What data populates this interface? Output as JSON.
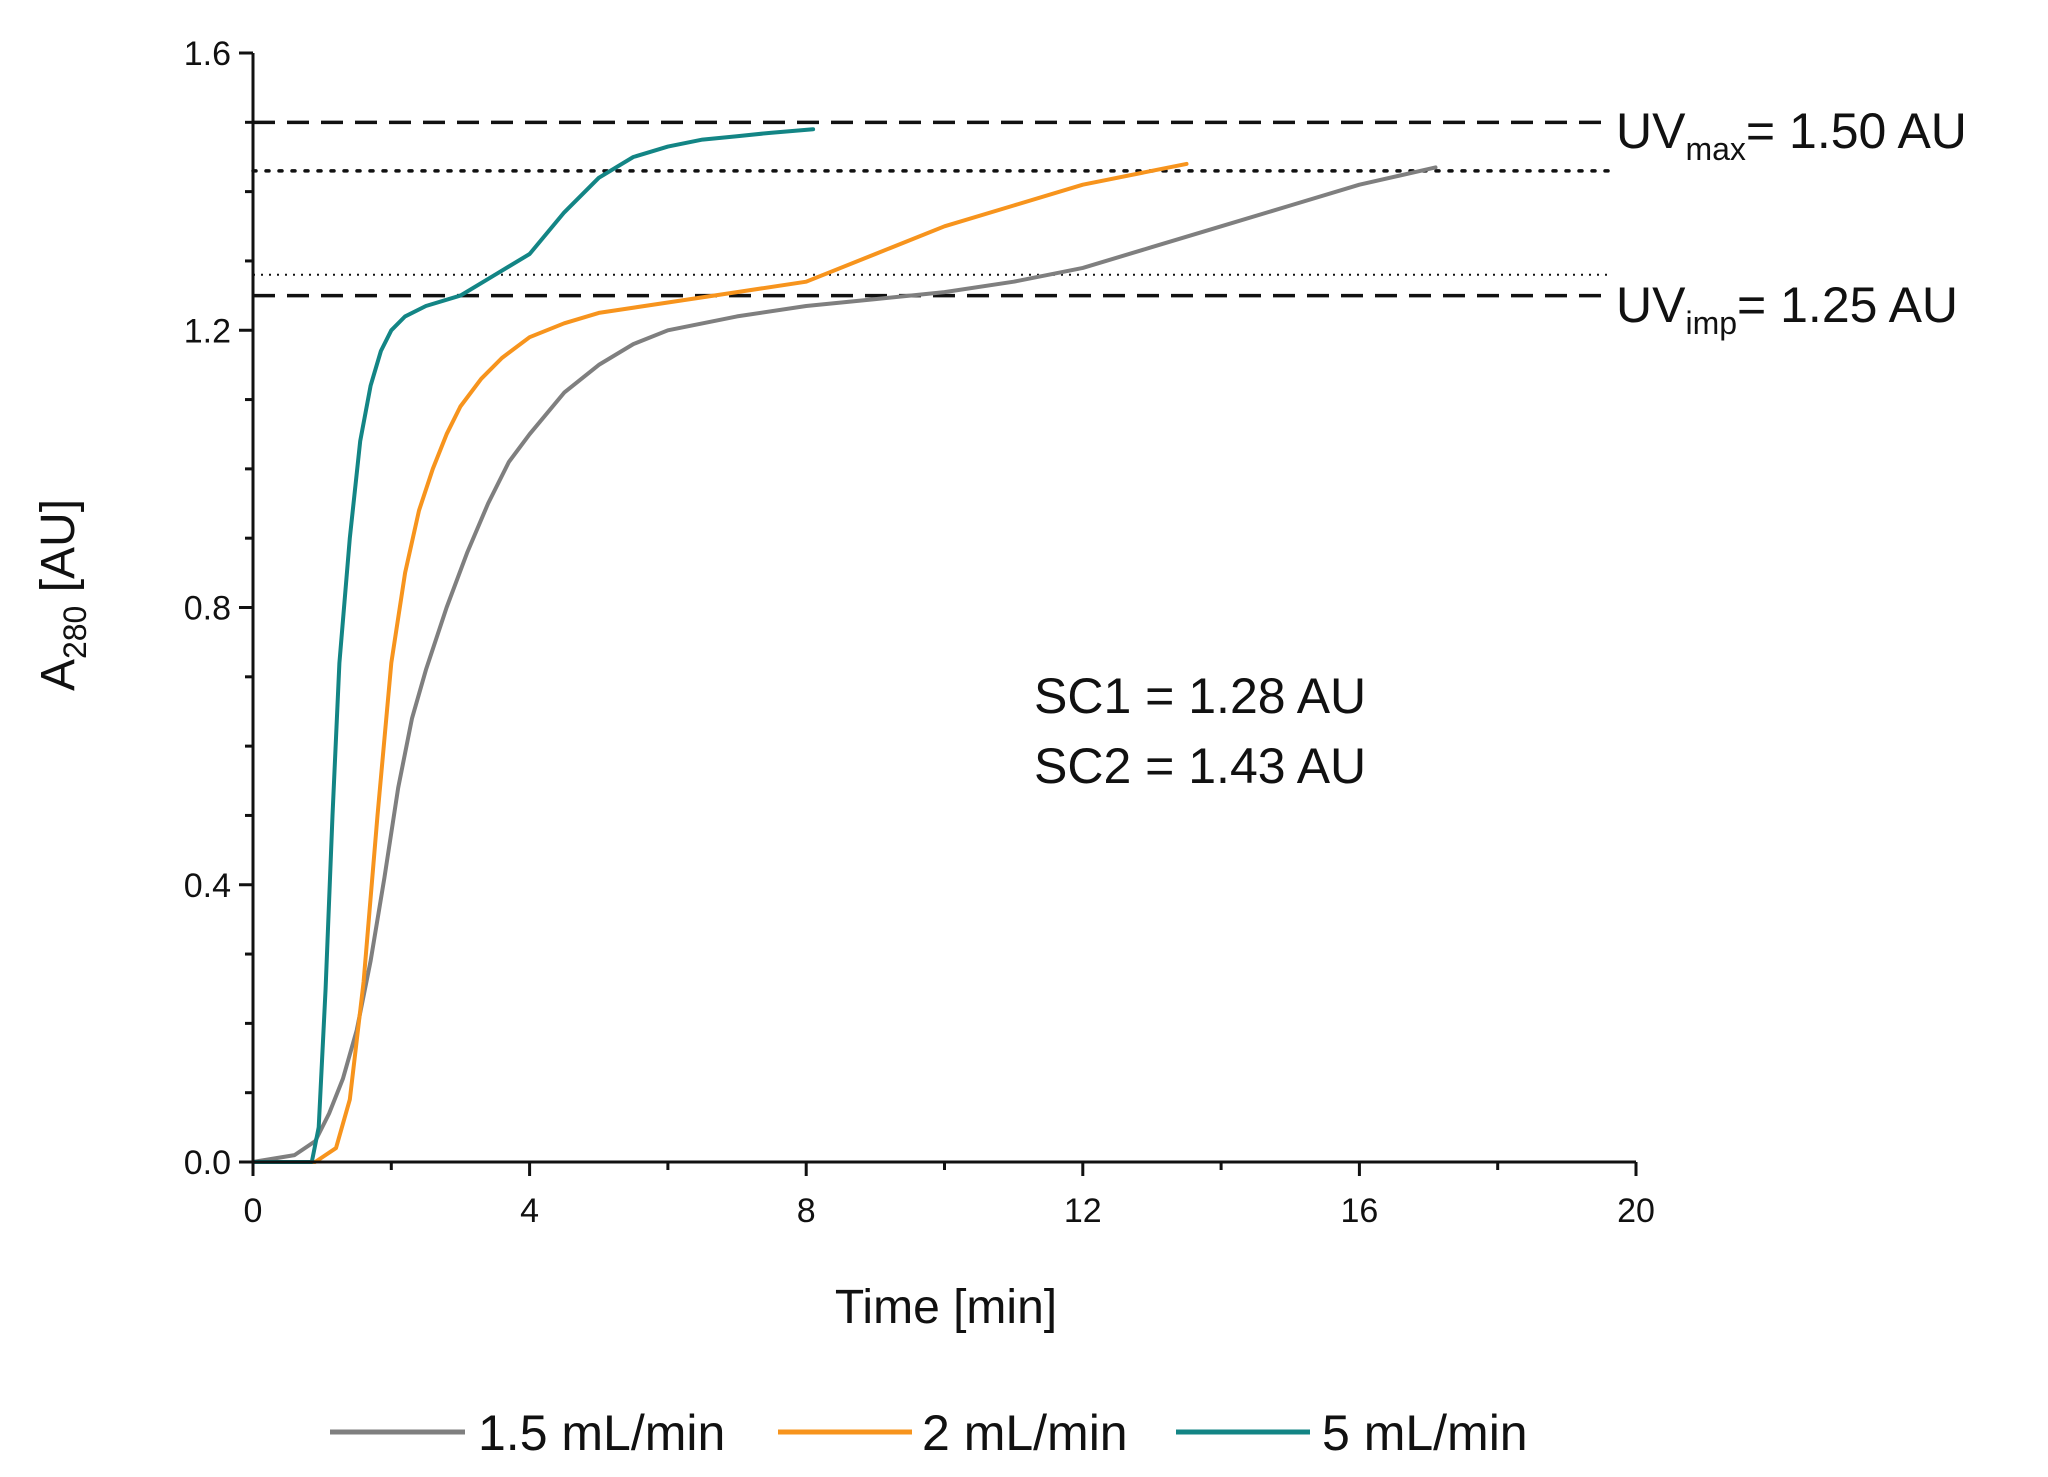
{
  "chart_data": {
    "type": "line",
    "title": "",
    "xlabel": "Time [min]",
    "ylabel": {
      "main": "A",
      "sub": "280",
      "rest": " [AU]"
    },
    "xlim": [
      0,
      20
    ],
    "ylim": [
      0,
      1.6
    ],
    "xticks": [
      "0",
      "4",
      "8",
      "12",
      "16",
      "20"
    ],
    "xtick_values": [
      0,
      4,
      8,
      12,
      16,
      20
    ],
    "yticks": [
      "0.0",
      "0.4",
      "0.8",
      "1.2",
      "1.6"
    ],
    "ytick_values": [
      0,
      0.4,
      0.8,
      1.2,
      1.6
    ],
    "grid": false,
    "legend_position": "bottom",
    "series": [
      {
        "name": "1.5 mL/min",
        "color": "#7f7f7f",
        "x": [
          0,
          0.6,
          0.9,
          1.1,
          1.3,
          1.5,
          1.7,
          1.9,
          2.1,
          2.3,
          2.5,
          2.8,
          3.1,
          3.4,
          3.7,
          4.0,
          4.5,
          5.0,
          5.5,
          6.0,
          7.0,
          8.0,
          9.0,
          10.0,
          11.0,
          12.0,
          13.0,
          14.0,
          15.0,
          16.0,
          17.1
        ],
        "y": [
          0.0,
          0.01,
          0.03,
          0.07,
          0.12,
          0.19,
          0.29,
          0.41,
          0.54,
          0.64,
          0.71,
          0.8,
          0.88,
          0.95,
          1.01,
          1.05,
          1.11,
          1.15,
          1.18,
          1.2,
          1.22,
          1.235,
          1.245,
          1.255,
          1.27,
          1.29,
          1.32,
          1.35,
          1.38,
          1.41,
          1.435
        ]
      },
      {
        "name": "2 mL/min",
        "color": "#f7941d",
        "x": [
          0,
          0.9,
          1.2,
          1.4,
          1.6,
          1.8,
          2.0,
          2.2,
          2.4,
          2.6,
          2.8,
          3.0,
          3.3,
          3.6,
          4.0,
          4.5,
          5.0,
          6.0,
          7.0,
          8.0,
          9.0,
          10.0,
          11.0,
          12.0,
          13.0,
          13.5
        ],
        "y": [
          0.0,
          0.0,
          0.02,
          0.09,
          0.26,
          0.5,
          0.72,
          0.85,
          0.94,
          1.0,
          1.05,
          1.09,
          1.13,
          1.16,
          1.19,
          1.21,
          1.225,
          1.24,
          1.255,
          1.27,
          1.31,
          1.35,
          1.38,
          1.41,
          1.43,
          1.44
        ]
      },
      {
        "name": "5 mL/min",
        "color": "#138585",
        "x": [
          0,
          0.85,
          0.95,
          1.05,
          1.15,
          1.25,
          1.4,
          1.55,
          1.7,
          1.85,
          2.0,
          2.2,
          2.5,
          3.0,
          3.5,
          4.0,
          4.5,
          5.0,
          5.5,
          6.0,
          6.5,
          7.0,
          7.5,
          8.1
        ],
        "y": [
          0.0,
          0.0,
          0.05,
          0.25,
          0.5,
          0.72,
          0.9,
          1.04,
          1.12,
          1.17,
          1.2,
          1.22,
          1.235,
          1.25,
          1.28,
          1.31,
          1.37,
          1.42,
          1.45,
          1.465,
          1.475,
          1.48,
          1.485,
          1.49
        ]
      }
    ],
    "reference_lines": [
      {
        "name": "uv-max",
        "y": 1.5,
        "style": "dashed",
        "label_main": "UV",
        "label_sub": "max",
        "label_rest": "= 1.50 AU"
      },
      {
        "name": "uv-imp",
        "y": 1.25,
        "style": "dashed",
        "label_main": "UV",
        "label_sub": "imp",
        "label_rest": "= 1.25 AU"
      },
      {
        "name": "sc2",
        "y": 1.43,
        "style": "dotted"
      },
      {
        "name": "sc1",
        "y": 1.28,
        "style": "fine-dotted"
      }
    ],
    "annotations": [
      "SC1 = 1.28 AU",
      "SC2 = 1.43 AU"
    ]
  }
}
